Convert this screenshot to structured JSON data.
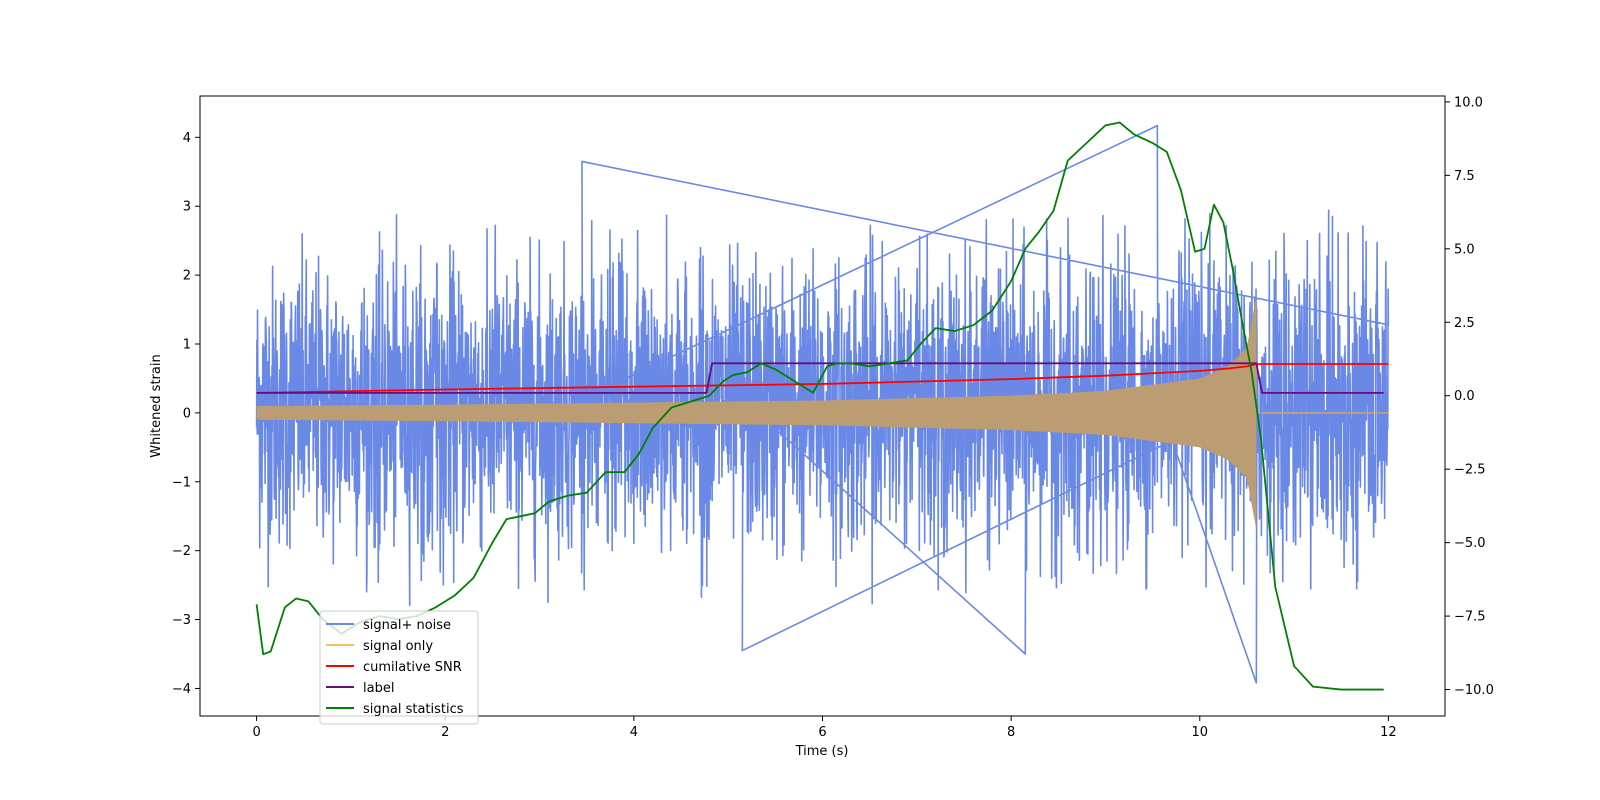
{
  "chart_data": {
    "type": "line",
    "title": "",
    "xlabel": "Time (s)",
    "ylabel": "Whitened strain",
    "y2label": "",
    "xlim": [
      -0.6,
      12.6
    ],
    "ylim": [
      -4.4,
      4.6
    ],
    "y2lim": [
      -10.9,
      10.2
    ],
    "x_ticks": [
      0,
      2,
      4,
      6,
      8,
      10,
      12
    ],
    "y_ticks": [
      -4,
      -3,
      -2,
      -1,
      0,
      1,
      2,
      3,
      4
    ],
    "y2_ticks": [
      -10.0,
      -7.5,
      -5.0,
      -2.5,
      0.0,
      2.5,
      5.0,
      7.5,
      10.0
    ],
    "x_tick_labels": [
      "0",
      "2",
      "4",
      "6",
      "8",
      "10",
      "12"
    ],
    "y_tick_labels": [
      "−4",
      "−3",
      "−2",
      "−1",
      "0",
      "1",
      "2",
      "3",
      "4"
    ],
    "y2_tick_labels": [
      "−10.0",
      "−7.5",
      "−5.0",
      "−2.5",
      "0.0",
      "2.5",
      "5.0",
      "7.5",
      "10.0"
    ],
    "grid": false,
    "legend_position": "lower-left",
    "legend": [
      {
        "name": "signal+ noise",
        "color": "#6a89e6"
      },
      {
        "name": "signal only",
        "color": "#f5c064"
      },
      {
        "name": "cumilative SNR",
        "color": "#ff0000"
      },
      {
        "name": "label",
        "color": "#6a0a7e"
      },
      {
        "name": "signal statistics",
        "color": "#008000"
      }
    ],
    "series": [
      {
        "name": "signal+ noise",
        "axis": "left",
        "color": "#6a89e6",
        "description": "noisy signal spanning 0 to 12 s with amplitude roughly between -3.9 and 4.2",
        "x_range": [
          0,
          12
        ],
        "typical_range": [
          -2.4,
          2.6
        ],
        "extremes": [
          [
            3.45,
            3.65
          ],
          [
            9.55,
            4.17
          ],
          [
            10.6,
            -3.92
          ],
          [
            5.15,
            -3.45
          ],
          [
            8.15,
            -3.5
          ]
        ]
      },
      {
        "name": "signal only",
        "axis": "left",
        "color": "#f5c064",
        "description": "chirp envelope growing from ~0.1 at t=0 to ~1.7 near t=10.6 s, then zero",
        "envelope": {
          "x": [
            0,
            2,
            4,
            6,
            8,
            9,
            10,
            10.3,
            10.5,
            10.6
          ],
          "y": [
            0.1,
            0.12,
            0.15,
            0.18,
            0.25,
            0.32,
            0.5,
            0.68,
            0.95,
            1.7
          ]
        },
        "post": {
          "x": [
            10.65,
            12
          ],
          "y": [
            0.0,
            0.0
          ]
        }
      },
      {
        "name": "cumilative SNR",
        "axis": "left",
        "color": "#ff0000",
        "x": [
          0,
          2,
          4,
          6,
          8,
          9,
          10,
          10.3,
          10.5,
          10.6,
          12
        ],
        "y": [
          0.29,
          0.34,
          0.38,
          0.42,
          0.49,
          0.54,
          0.61,
          0.645,
          0.675,
          0.71,
          0.71
        ]
      },
      {
        "name": "label",
        "axis": "left",
        "color": "#6a0a7e",
        "x": [
          0,
          4.77,
          4.83,
          10.6,
          10.66,
          11.95
        ],
        "y": [
          0.29,
          0.29,
          0.72,
          0.72,
          0.29,
          0.29
        ]
      },
      {
        "name": "signal statistics",
        "axis": "right",
        "color": "#008000",
        "x": [
          0.0,
          0.07,
          0.15,
          0.3,
          0.42,
          0.55,
          0.7,
          0.9,
          1.1,
          1.3,
          1.5,
          1.7,
          1.9,
          2.1,
          2.3,
          2.5,
          2.65,
          2.8,
          2.95,
          3.1,
          3.3,
          3.5,
          3.7,
          3.9,
          4.05,
          4.2,
          4.4,
          4.6,
          4.8,
          4.95,
          5.05,
          5.2,
          5.35,
          5.5,
          5.7,
          5.9,
          6.05,
          6.15,
          6.3,
          6.5,
          6.7,
          6.9,
          7.05,
          7.2,
          7.4,
          7.6,
          7.8,
          8.0,
          8.15,
          8.3,
          8.45,
          8.6,
          8.8,
          9.0,
          9.15,
          9.3,
          9.5,
          9.65,
          9.8,
          9.95,
          10.05,
          10.15,
          10.25,
          10.35,
          10.45,
          10.55,
          10.65,
          10.8,
          11.0,
          11.2,
          11.5,
          11.95
        ],
        "y": [
          -7.1,
          -8.8,
          -8.7,
          -7.2,
          -6.9,
          -7.0,
          -7.6,
          -8.1,
          -7.7,
          -7.5,
          -7.6,
          -7.5,
          -7.2,
          -6.8,
          -6.2,
          -5.0,
          -4.2,
          -4.1,
          -4.0,
          -3.6,
          -3.4,
          -3.3,
          -2.6,
          -2.6,
          -2.0,
          -1.1,
          -0.4,
          -0.2,
          0.0,
          0.5,
          0.7,
          0.8,
          1.1,
          0.9,
          0.5,
          0.1,
          1.0,
          1.1,
          1.1,
          1.0,
          1.1,
          1.2,
          1.8,
          2.3,
          2.2,
          2.4,
          2.9,
          3.9,
          5.0,
          5.6,
          6.3,
          8.0,
          8.6,
          9.2,
          9.3,
          8.9,
          8.6,
          8.3,
          7.0,
          4.9,
          5.0,
          6.5,
          5.9,
          4.3,
          2.5,
          0.8,
          -1.5,
          -6.5,
          -9.2,
          -9.9,
          -10.0,
          -10.0
        ]
      }
    ]
  }
}
